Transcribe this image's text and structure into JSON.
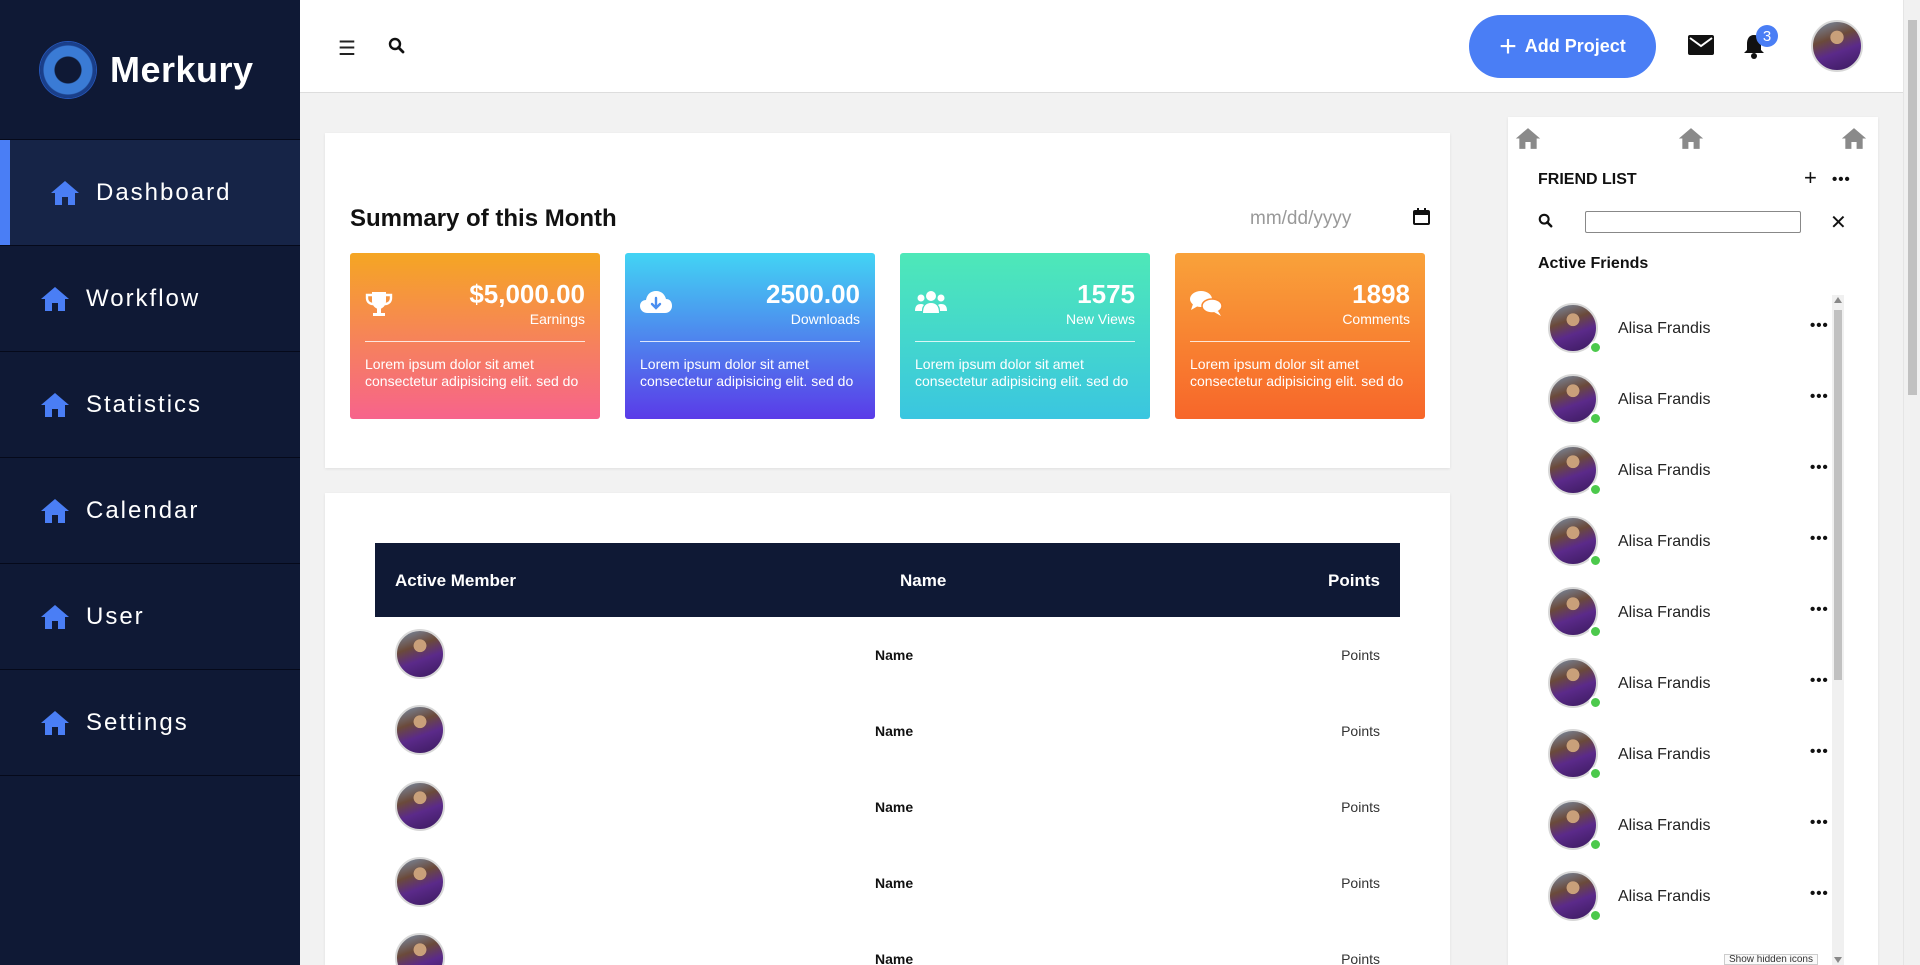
{
  "brand": {
    "name": "Merkury"
  },
  "sidebar": {
    "items": [
      {
        "label": "Dashboard",
        "icon": "home-icon",
        "active": true
      },
      {
        "label": "Workflow",
        "icon": "home-icon"
      },
      {
        "label": "Statistics",
        "icon": "home-icon"
      },
      {
        "label": "Calendar",
        "icon": "home-icon"
      },
      {
        "label": "User",
        "icon": "home-icon"
      },
      {
        "label": "Settings",
        "icon": "home-icon"
      }
    ]
  },
  "topbar": {
    "menu_icon": "hamburger-icon",
    "search_icon": "search-icon",
    "add_project_label": "Add Project",
    "notification_count": "3"
  },
  "summary": {
    "title": "Summary of this Month",
    "date_placeholder": "mm/dd/yyyy",
    "cards": [
      {
        "value": "$5,000.00",
        "label": "Earnings",
        "icon": "trophy-icon",
        "description": "Lorem ipsum dolor sit amet consectetur adipisicing elit. sed do"
      },
      {
        "value": "2500.00",
        "label": "Downloads",
        "icon": "cloud-download-icon",
        "description": "Lorem ipsum dolor sit amet consectetur adipisicing elit. sed do"
      },
      {
        "value": "1575",
        "label": "New Views",
        "icon": "users-icon",
        "description": "Lorem ipsum dolor sit amet consectetur adipisicing elit. sed do"
      },
      {
        "value": "1898",
        "label": "Comments",
        "icon": "comments-icon",
        "description": "Lorem ipsum dolor sit amet consectetur adipisicing elit. sed do"
      }
    ]
  },
  "members": {
    "columns": [
      "Active Member",
      "Name",
      "Points"
    ],
    "rows": [
      {
        "name": "Name",
        "points": "Points"
      },
      {
        "name": "Name",
        "points": "Points"
      },
      {
        "name": "Name",
        "points": "Points"
      },
      {
        "name": "Name",
        "points": "Points"
      },
      {
        "name": "Name",
        "points": "Points"
      }
    ]
  },
  "friends": {
    "title": "FRIEND LIST",
    "section": "Active Friends",
    "search_value": "",
    "items": [
      {
        "name": "Alisa Frandis"
      },
      {
        "name": "Alisa Frandis"
      },
      {
        "name": "Alisa Frandis"
      },
      {
        "name": "Alisa Frandis"
      },
      {
        "name": "Alisa Frandis"
      },
      {
        "name": "Alisa Frandis"
      },
      {
        "name": "Alisa Frandis"
      },
      {
        "name": "Alisa Frandis"
      },
      {
        "name": "Alisa Frandis"
      }
    ]
  },
  "tooltip": "Show hidden icons",
  "colors": {
    "sidebar_bg": "#0f1935",
    "accent": "#4a7ef5",
    "online": "#4cc94c"
  }
}
